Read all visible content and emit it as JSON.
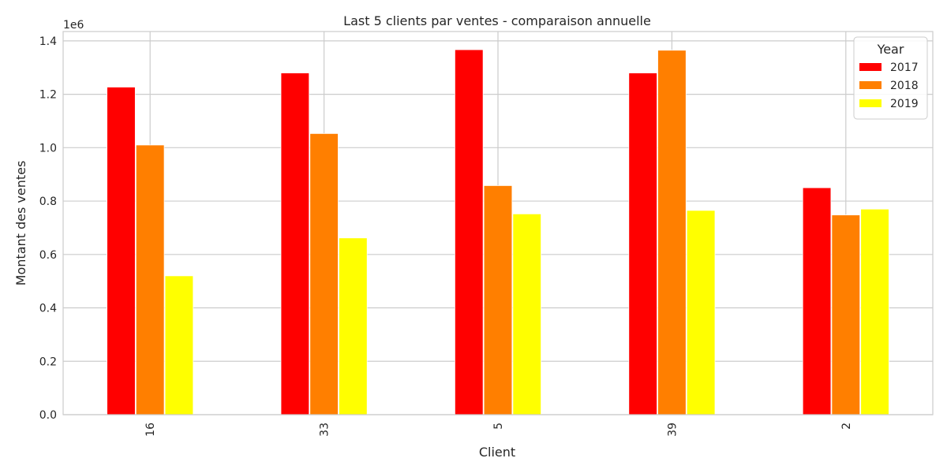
{
  "chart_data": {
    "type": "bar",
    "title": "Last 5 clients par ventes - comparaison annuelle",
    "xlabel": "Client",
    "ylabel": "Montant des ventes",
    "y_offset_label": "1e6",
    "categories": [
      "16",
      "33",
      "5",
      "39",
      "2"
    ],
    "series": [
      {
        "name": "2017",
        "color": "#ff0000",
        "values": [
          1227000,
          1280000,
          1367000,
          1280000,
          850000
        ]
      },
      {
        "name": "2018",
        "color": "#ff7f00",
        "values": [
          1010000,
          1053000,
          858000,
          1365000,
          748000
        ]
      },
      {
        "name": "2019",
        "color": "#ffff00",
        "values": [
          520000,
          662000,
          752000,
          765000,
          770000
        ]
      }
    ],
    "ylim": [
      0,
      1435000
    ],
    "yticks": [
      0,
      200000,
      400000,
      600000,
      800000,
      1000000,
      1200000,
      1400000
    ],
    "ytick_labels": [
      "0.0",
      "0.2",
      "0.4",
      "0.6",
      "0.8",
      "1.0",
      "1.2",
      "1.4"
    ],
    "grid": true,
    "legend": {
      "title": "Year",
      "placement": "top-right"
    }
  }
}
